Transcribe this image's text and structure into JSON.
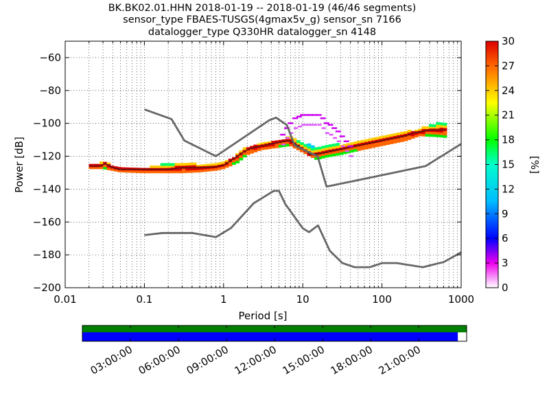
{
  "title_lines": [
    "BK.BK02.01.HHN   2018-01-19 -- 2018-01-19  (46/46 segments)",
    "sensor_type FBAES-TUSGS(4gmax5v_g) sensor_sn 7166",
    "datalogger_type Q330HR datalogger_sn 4148"
  ],
  "chart_data": {
    "type": "heatmap",
    "title": "BK.BK02.01.HHN   2018-01-19 -- 2018-01-19  (46/46 segments)",
    "xlabel": "Period [s]",
    "ylabel": "Power [dB]",
    "xscale": "log",
    "xlim": [
      0.01,
      1000
    ],
    "ylim": [
      -200,
      -50
    ],
    "x_ticks": [
      0.01,
      0.1,
      1,
      10,
      100,
      1000
    ],
    "x_tick_labels": [
      "0.01",
      "0.1",
      "1",
      "10",
      "100",
      "1000"
    ],
    "y_ticks": [
      -200,
      -180,
      -160,
      -140,
      -120,
      -100,
      -80,
      -60
    ],
    "y_tick_labels": [
      "−200",
      "−180",
      "−160",
      "−140",
      "−120",
      "−100",
      "−80",
      "−60"
    ],
    "grid": true,
    "colorbar": {
      "label": "[%]",
      "range": [
        0,
        30
      ],
      "ticks": [
        0,
        3,
        6,
        9,
        12,
        15,
        18,
        21,
        24,
        27,
        30
      ]
    },
    "noise_models": [
      {
        "id": "nhnm",
        "period": [
          0.1,
          0.22,
          0.32,
          0.8,
          3.8,
          4.6,
          6.3,
          7.9,
          15.4,
          20,
          354.8,
          1000
        ],
        "power": [
          -91.5,
          -97.4,
          -110.5,
          -120,
          -98,
          -96.5,
          -101,
          -113.5,
          -120,
          -138.5,
          -126,
          -112.5
        ]
      },
      {
        "id": "nlnm",
        "period": [
          0.1,
          0.17,
          0.4,
          0.8,
          1.24,
          2.4,
          4.3,
          5,
          6,
          10,
          12,
          15.6,
          21.9,
          31.6,
          45,
          70,
          101,
          154,
          328,
          600,
          1000
        ],
        "power": [
          -168,
          -166.7,
          -166.7,
          -169.2,
          -163.7,
          -148.6,
          -141.1,
          -141.1,
          -149,
          -163.8,
          -166.2,
          -162.1,
          -177.5,
          -185,
          -187.5,
          -187.5,
          -185,
          -185,
          -187.5,
          -184.4,
          -178.5
        ]
      }
    ],
    "ppsd_mode": {
      "period": [
        0.02,
        0.028,
        0.032,
        0.04,
        0.05,
        0.07,
        0.1,
        0.15,
        0.2,
        0.3,
        0.5,
        0.8,
        1.0,
        1.3,
        1.6,
        2.0,
        2.5,
        3.2,
        4.0,
        5.0,
        6.3,
        7.1,
        8.0,
        10.0,
        12.6,
        16.0,
        20.0,
        25.0,
        32.0,
        40.0,
        50.0,
        63.0,
        80.0,
        100.0,
        126.0,
        160.0,
        200.0,
        250.0,
        320.0,
        400.0,
        500.0,
        630.0
      ],
      "power": [
        -126,
        -126,
        -124.5,
        -127,
        -128,
        -128,
        -128,
        -128,
        -128,
        -127,
        -127,
        -126.5,
        -125.5,
        -122,
        -119,
        -116,
        -114.5,
        -113.5,
        -112.5,
        -111.5,
        -110.5,
        -111,
        -112.5,
        -115.5,
        -119,
        -118.5,
        -117.5,
        -116.5,
        -115.5,
        -114.5,
        -113.5,
        -112.5,
        -111.5,
        -110.5,
        -109.5,
        -108.5,
        -107.5,
        -106,
        -105,
        -104,
        -104,
        -104
      ]
    },
    "ppsd_spread": {
      "period": [
        0.02,
        0.03,
        0.05,
        0.1,
        0.2,
        0.3,
        0.5,
        0.8,
        1.0,
        1.5,
        2.0,
        3.0,
        5.0,
        7.0,
        10.0,
        15.0,
        20.0,
        30.0,
        50.0,
        100.0,
        200.0,
        300.0,
        500.0,
        630.0
      ],
      "upper": [
        -125.5,
        -123.5,
        -126.5,
        -127,
        -124,
        -123.5,
        -125,
        -125,
        -124,
        -119,
        -114,
        -112,
        -110,
        -108,
        -112,
        -114,
        -113,
        -112.5,
        -111,
        -108.5,
        -105,
        -103,
        -100,
        -99.5
      ],
      "lower": [
        -127,
        -127,
        -129,
        -129.5,
        -129.5,
        -129.5,
        -129,
        -128,
        -127,
        -123.5,
        -118.5,
        -115.5,
        -114,
        -113,
        -117,
        -121.5,
        -120,
        -118.5,
        -116,
        -113,
        -110,
        -107,
        -107.5,
        -108
      ]
    },
    "ppsd_outliers": {
      "period": [
        5.6,
        6.3,
        7.0,
        8.0,
        9.0,
        10.0,
        11.2,
        12.5,
        14.0,
        16.0,
        18.0,
        20.0,
        22.4,
        25.0,
        28.0,
        31.5,
        35.5,
        40.0
      ],
      "power": [
        -107,
        -103,
        -100,
        -97,
        -96,
        -95,
        -95,
        -95,
        -95,
        -95,
        -97,
        -100,
        -101,
        -103,
        -105,
        -108,
        -111,
        -114
      ]
    }
  },
  "time_coverage": {
    "tick_labels": [
      "03:00:00",
      "06:00:00",
      "09:00:00",
      "12:00:00",
      "15:00:00",
      "18:00:00",
      "21:00:00"
    ],
    "tick_hours": [
      3,
      6,
      9,
      12,
      15,
      18,
      21
    ],
    "range_hours": [
      0,
      24
    ],
    "data_coverage_fraction": 1.0,
    "segment_coverage_fraction": 0.977,
    "colors": {
      "data": "#008000",
      "segments": "#0000ff"
    }
  },
  "colors": {
    "noise_model": "#666666",
    "axes": "#000000",
    "grid": "#000000"
  }
}
